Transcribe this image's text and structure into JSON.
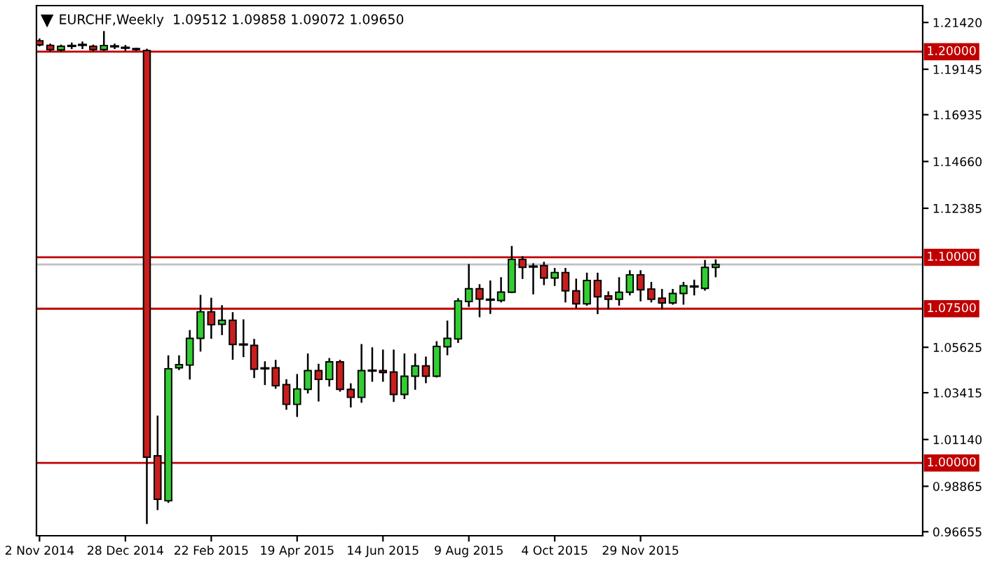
{
  "chart_data": {
    "type": "candlestick",
    "title": "EURCHF,Weekly  1.09512 1.09858 1.09072 1.09650",
    "x": [
      "2014-11-02",
      "2014-11-09",
      "2014-11-16",
      "2014-11-23",
      "2014-11-30",
      "2014-12-07",
      "2014-12-14",
      "2014-12-21",
      "2014-12-28",
      "2015-01-04",
      "2015-01-11",
      "2015-01-18",
      "2015-01-25",
      "2015-02-01",
      "2015-02-08",
      "2015-02-15",
      "2015-02-22",
      "2015-03-01",
      "2015-03-08",
      "2015-03-15",
      "2015-03-22",
      "2015-03-29",
      "2015-04-05",
      "2015-04-12",
      "2015-04-19",
      "2015-04-26",
      "2015-05-03",
      "2015-05-10",
      "2015-05-17",
      "2015-05-24",
      "2015-05-31",
      "2015-06-07",
      "2015-06-14",
      "2015-06-21",
      "2015-06-28",
      "2015-07-05",
      "2015-07-12",
      "2015-07-19",
      "2015-07-26",
      "2015-08-02",
      "2015-08-09",
      "2015-08-16",
      "2015-08-23",
      "2015-08-30",
      "2015-09-06",
      "2015-09-13",
      "2015-09-20",
      "2015-09-27",
      "2015-10-04",
      "2015-10-11",
      "2015-10-18",
      "2015-10-25",
      "2015-11-01",
      "2015-11-08",
      "2015-11-15",
      "2015-11-22",
      "2015-11-29",
      "2015-12-06",
      "2015-12-13",
      "2015-12-20",
      "2015-12-27",
      "2016-01-03",
      "2016-01-10",
      "2016-01-17"
    ],
    "ohlc": [
      [
        1.2053,
        1.206,
        1.203,
        1.2033
      ],
      [
        1.2031,
        1.2035,
        1.2005,
        1.201
      ],
      [
        1.2008,
        1.203,
        1.2005,
        1.2026
      ],
      [
        1.2028,
        1.204,
        1.2017,
        1.2028
      ],
      [
        1.2033,
        1.2045,
        1.2017,
        1.2033
      ],
      [
        1.2026,
        1.203,
        1.2006,
        1.201
      ],
      [
        1.201,
        1.2096,
        1.2008,
        1.203
      ],
      [
        1.2026,
        1.2035,
        1.2017,
        1.2026
      ],
      [
        1.2019,
        1.2028,
        1.2008,
        1.2019
      ],
      [
        1.2015,
        1.2015,
        1.2008,
        1.201
      ],
      [
        1.2006,
        1.201,
        0.9707,
        1.0028
      ],
      [
        1.0035,
        1.0226,
        0.9775,
        0.9823
      ],
      [
        0.9816,
        1.0519,
        0.981,
        1.0458
      ],
      [
        1.0463,
        1.0519,
        1.0456,
        1.0478
      ],
      [
        1.0476,
        1.0642,
        1.041,
        1.0606
      ],
      [
        1.0606,
        1.0813,
        1.0546,
        1.0735
      ],
      [
        1.0735,
        1.0799,
        1.0608,
        1.0672
      ],
      [
        1.0674,
        1.0763,
        1.0626,
        1.0694
      ],
      [
        1.0694,
        1.0729,
        1.0506,
        1.0576
      ],
      [
        1.0576,
        1.0694,
        1.0519,
        1.0576
      ],
      [
        1.0572,
        1.0599,
        1.0417,
        1.0456
      ],
      [
        1.046,
        1.049,
        1.0383,
        1.046
      ],
      [
        1.0463,
        1.0497,
        1.0365,
        1.0376
      ],
      [
        1.0381,
        1.0403,
        1.0263,
        1.0285
      ],
      [
        1.0285,
        1.0428,
        1.0228,
        1.036
      ],
      [
        1.0358,
        1.0528,
        1.0342,
        1.0449
      ],
      [
        1.0449,
        1.0478,
        1.0303,
        1.0406
      ],
      [
        1.0406,
        1.0506,
        1.0376,
        1.0492
      ],
      [
        1.0492,
        1.0497,
        1.0351,
        1.0358
      ],
      [
        1.0358,
        1.0383,
        1.0274,
        1.0319
      ],
      [
        1.0319,
        1.0574,
        1.0297,
        1.0449
      ],
      [
        1.0449,
        1.0558,
        1.0399,
        1.0449
      ],
      [
        1.0449,
        1.0547,
        1.0399,
        1.044
      ],
      [
        1.0442,
        1.0547,
        1.0301,
        1.0333
      ],
      [
        1.0333,
        1.0528,
        1.0315,
        1.0422
      ],
      [
        1.0422,
        1.0528,
        1.036,
        1.0472
      ],
      [
        1.0472,
        1.0513,
        1.0392,
        1.0422
      ],
      [
        1.0422,
        1.0588,
        1.042,
        1.0567
      ],
      [
        1.0565,
        1.0688,
        1.0528,
        1.0606
      ],
      [
        1.0603,
        1.0797,
        1.0588,
        1.0788
      ],
      [
        1.0785,
        1.0963,
        1.0763,
        1.0847
      ],
      [
        1.0847,
        1.0865,
        1.0713,
        1.0797
      ],
      [
        1.0794,
        1.0883,
        1.0729,
        1.0794
      ],
      [
        1.079,
        1.0899,
        1.0785,
        1.0831
      ],
      [
        1.083,
        1.1051,
        1.083,
        1.099
      ],
      [
        1.099,
        1.1001,
        1.0899,
        1.0951
      ],
      [
        1.0955,
        1.0967,
        1.0824,
        1.0955
      ],
      [
        1.096,
        1.0974,
        1.0869,
        1.0899
      ],
      [
        1.0899,
        1.0944,
        1.0865,
        1.0926
      ],
      [
        1.0926,
        1.0944,
        1.0785,
        1.0837
      ],
      [
        1.0837,
        1.0892,
        1.0755,
        1.0774
      ],
      [
        1.0774,
        1.0921,
        1.0769,
        1.0887
      ],
      [
        1.0887,
        1.0921,
        1.0728,
        1.0808
      ],
      [
        1.0812,
        1.083,
        1.0751,
        1.0796
      ],
      [
        1.0796,
        1.0899,
        1.0769,
        1.083
      ],
      [
        1.083,
        1.0933,
        1.0819,
        1.0915
      ],
      [
        1.0915,
        1.0933,
        1.079,
        1.0842
      ],
      [
        1.0846,
        1.0876,
        1.0785,
        1.0796
      ],
      [
        1.0801,
        1.0842,
        1.0751,
        1.0778
      ],
      [
        1.0778,
        1.0842,
        1.0774,
        1.0824
      ],
      [
        1.0824,
        1.0876,
        1.0774,
        1.0862
      ],
      [
        1.0858,
        1.0887,
        1.0819,
        1.0858
      ],
      [
        1.0849,
        1.0983,
        1.0842,
        1.0951
      ],
      [
        1.09512,
        1.09858,
        1.09072,
        1.0965
      ]
    ],
    "colors": [
      "#c81e1e",
      "#c81e1e",
      "#32cd32",
      "#000000",
      "#000000",
      "#c81e1e",
      "#32cd32",
      "#000000",
      "#000000",
      "#c81e1e",
      "#c81e1e",
      "#c81e1e",
      "#32cd32",
      "#32cd32",
      "#32cd32",
      "#32cd32",
      "#c81e1e",
      "#32cd32",
      "#c81e1e",
      "#000000",
      "#c81e1e",
      "#000000",
      "#c81e1e",
      "#c81e1e",
      "#32cd32",
      "#32cd32",
      "#c81e1e",
      "#32cd32",
      "#c81e1e",
      "#c81e1e",
      "#32cd32",
      "#000000",
      "#c81e1e",
      "#c81e1e",
      "#32cd32",
      "#32cd32",
      "#c81e1e",
      "#32cd32",
      "#32cd32",
      "#32cd32",
      "#32cd32",
      "#c81e1e",
      "#000000",
      "#32cd32",
      "#32cd32",
      "#c81e1e",
      "#000000",
      "#c81e1e",
      "#32cd32",
      "#c81e1e",
      "#c81e1e",
      "#32cd32",
      "#c81e1e",
      "#c81e1e",
      "#32cd32",
      "#32cd32",
      "#c81e1e",
      "#c81e1e",
      "#c81e1e",
      "#32cd32",
      "#32cd32",
      "#000000",
      "#32cd32",
      "#32cd32"
    ],
    "xlim": [
      "2014-10-31",
      "2016-05-31"
    ],
    "xticks": [
      {
        "value": "2014-11-02",
        "label": "2 Nov 2014"
      },
      {
        "value": "2014-12-28",
        "label": "28 Dec 2014"
      },
      {
        "value": "2015-02-22",
        "label": "22 Feb 2015"
      },
      {
        "value": "2015-04-19",
        "label": "19 Apr 2015"
      },
      {
        "value": "2015-06-14",
        "label": "14 Jun 2015"
      },
      {
        "value": "2015-08-09",
        "label": "9 Aug 2015"
      },
      {
        "value": "2015-10-04",
        "label": "4 Oct 2015"
      },
      {
        "value": "2015-11-29",
        "label": "29 Nov 2015"
      }
    ],
    "ylim": [
      0.9646,
      1.2224
    ],
    "yticks": [
      {
        "value": 1.2142,
        "label": "1.21420"
      },
      {
        "value": 1.19145,
        "label": "1.19145"
      },
      {
        "value": 1.16935,
        "label": "1.16935"
      },
      {
        "value": 1.1466,
        "label": "1.14660"
      },
      {
        "value": 1.12385,
        "label": "1.12385"
      },
      {
        "value": 1.05625,
        "label": "1.05625"
      },
      {
        "value": 1.03415,
        "label": "1.03415"
      },
      {
        "value": 1.0114,
        "label": "1.01140"
      },
      {
        "value": 0.98865,
        "label": "0.98865"
      },
      {
        "value": 0.96655,
        "label": "0.96655"
      }
    ],
    "ref_lines": [
      {
        "axis": "y",
        "value": 1.2,
        "label": "1.20000",
        "color": "#c00000"
      },
      {
        "axis": "y",
        "value": 1.1,
        "label": "1.10000",
        "color": "#c00000"
      },
      {
        "axis": "y",
        "value": 1.075,
        "label": "1.07500",
        "color": "#c00000"
      },
      {
        "axis": "y",
        "value": 1.0,
        "label": "1.00000",
        "color": "#c00000"
      },
      {
        "axis": "y",
        "value": 1.0965,
        "color": "#c0c0c0"
      }
    ],
    "grid": false,
    "legend": false
  }
}
